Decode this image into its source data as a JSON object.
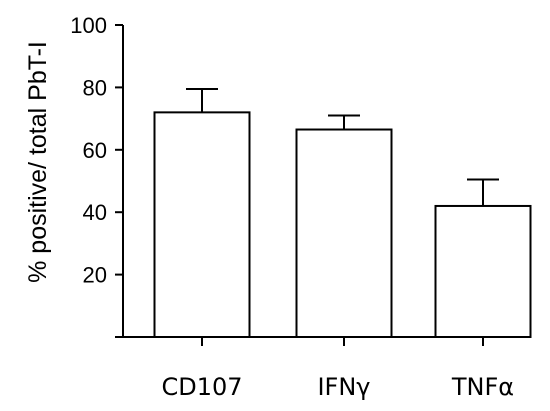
{
  "chart_data": {
    "type": "bar",
    "title": "",
    "xlabel": "",
    "ylabel": "% positive/ total PbT-I",
    "categories": [
      "CD107",
      "IFNγ",
      "TNFα"
    ],
    "values": [
      72,
      66.5,
      42
    ],
    "errors": [
      7.5,
      4.5,
      8.5
    ],
    "ylim": [
      0,
      100
    ],
    "yticks": [
      20,
      40,
      60,
      80,
      100
    ],
    "grid": false,
    "legend": "none",
    "colors": {
      "bar_fill": "#ffffff",
      "bar_stroke": "#000000",
      "axis": "#000000"
    }
  }
}
